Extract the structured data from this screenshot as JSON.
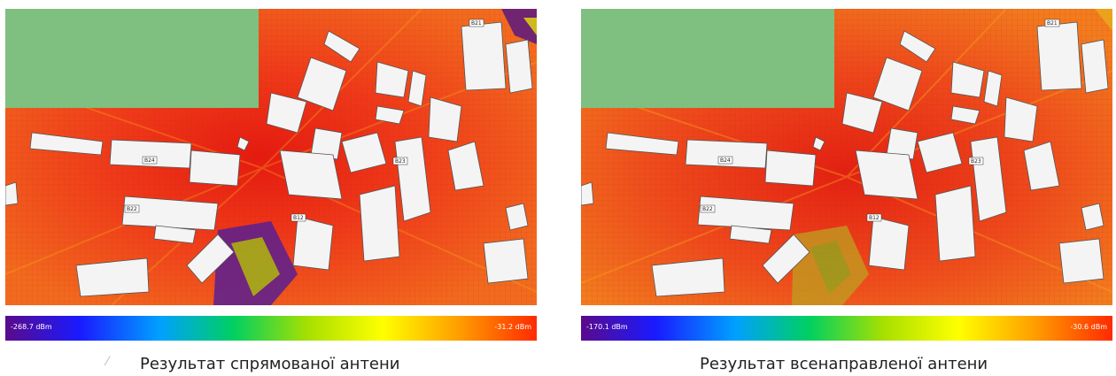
{
  "panels": [
    {
      "id": "directional",
      "caption": "Результат спрямованої антени",
      "legend_min": "-268.7 dBm",
      "legend_max": "-31.2 dBm",
      "map_labels": [
        "B21",
        "B23",
        "B22",
        "B24",
        "B12"
      ],
      "colors": {
        "base": "#f0421e",
        "strong": "#d8180f",
        "weak": "#f7951a",
        "low": "#6a1a7a",
        "mid": "#8aa81c"
      }
    },
    {
      "id": "omni",
      "caption": "Результат всенаправленої антени",
      "legend_min": "-170.1 dBm",
      "legend_max": "-30.6 dBm",
      "map_labels": [
        "B21",
        "B23",
        "B22",
        "B24",
        "B12"
      ],
      "colors": {
        "base": "#f04a1e",
        "strong": "#dd1e12",
        "weak": "#f5a01c",
        "low": "#7aa020",
        "mid": "#b8c020"
      }
    }
  ],
  "colorbar_colors": [
    "#5a0a8c",
    "#1a1aff",
    "#00a0ff",
    "#00d060",
    "#a8e000",
    "#ffff00",
    "#ff9900",
    "#ff2a00"
  ],
  "inactive_area_color": "#7fbf7f"
}
